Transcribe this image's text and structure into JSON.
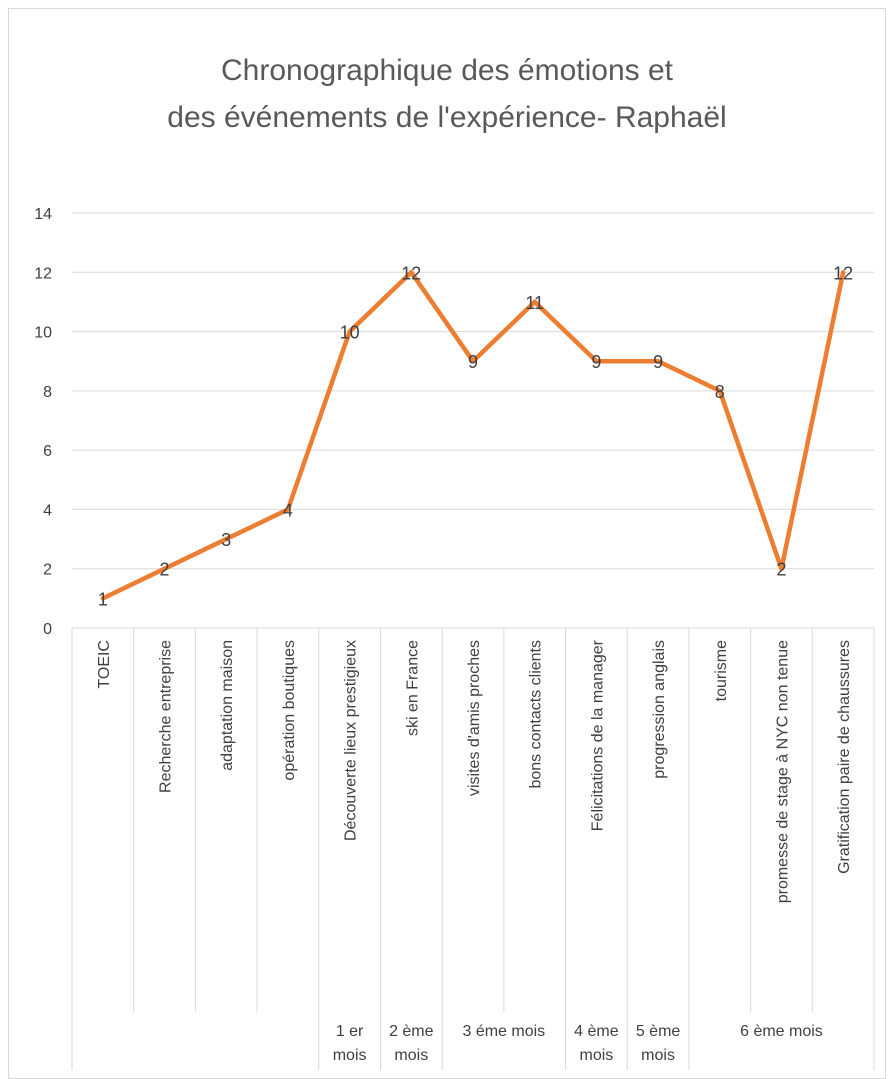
{
  "chart_data": {
    "type": "line",
    "title": [
      "Chronographique des émotions et",
      "des événements de l'expérience- Raphaël"
    ],
    "categories": [
      "TOEIC",
      "Recherche entreprise",
      "adaptation maison",
      "opération boutiques",
      "Découverte lieux prestigieux",
      "ski en France",
      "visites d'amis proches",
      "bons contacts clients",
      "Félicitations de la manager",
      "progression anglais",
      "tourisme",
      "promesse de stage à NYC non tenue",
      "Gratification paire de chaussures"
    ],
    "groups": [
      {
        "label": "1 er mois",
        "first": 4,
        "last": 4
      },
      {
        "label": "2 ème mois",
        "first": 5,
        "last": 5
      },
      {
        "label": "3 éme mois",
        "first": 6,
        "last": 7
      },
      {
        "label": "4 ème mois",
        "first": 8,
        "last": 8
      },
      {
        "label": "5 ème mois",
        "first": 9,
        "last": 9
      },
      {
        "label": "6 ème mois",
        "first": 10,
        "last": 12
      }
    ],
    "series": [
      {
        "color": "#ed7d31",
        "values": [
          1,
          2,
          3,
          4,
          10,
          12,
          9,
          11,
          9,
          9,
          8,
          2,
          12
        ]
      }
    ],
    "ylim": [
      0,
      14
    ],
    "yticks": [
      0,
      2,
      4,
      6,
      8,
      10,
      12,
      14
    ],
    "grid": true,
    "data_labels": true
  }
}
